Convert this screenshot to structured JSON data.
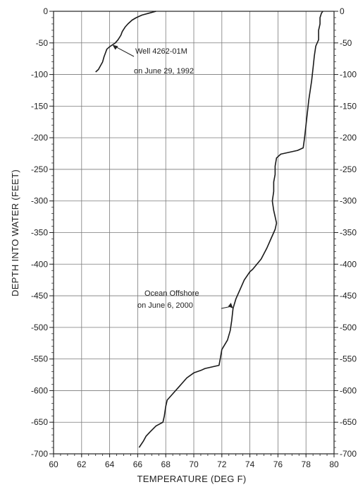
{
  "chart_data": {
    "type": "line",
    "title": "",
    "xlabel": "TEMPERATURE (DEG F)",
    "ylabel": "DEPTH INTO WATER (FEET)",
    "xlim": [
      60,
      80
    ],
    "ylim": [
      -700,
      0
    ],
    "x_ticks": [
      60,
      62,
      64,
      66,
      68,
      70,
      72,
      74,
      76,
      78,
      80
    ],
    "y_ticks": [
      0,
      -50,
      -100,
      -150,
      -200,
      -250,
      -300,
      -350,
      -400,
      -450,
      -500,
      -550,
      -600,
      -650,
      -700
    ],
    "grid": true,
    "legend": "none",
    "series": [
      {
        "points": [
          [
            67.3,
            0
          ],
          [
            66.8,
            -3
          ],
          [
            66.3,
            -6
          ],
          [
            65.9,
            -10
          ],
          [
            65.6,
            -14
          ],
          [
            65.3,
            -20
          ],
          [
            65.1,
            -25
          ],
          [
            64.9,
            -32
          ],
          [
            64.8,
            -38
          ],
          [
            64.6,
            -45
          ],
          [
            64.4,
            -50
          ],
          [
            64.2,
            -53
          ],
          [
            64.0,
            -56
          ],
          [
            63.8,
            -60
          ],
          [
            63.7,
            -66
          ],
          [
            63.6,
            -72
          ],
          [
            63.5,
            -80
          ],
          [
            63.3,
            -88
          ],
          [
            63.2,
            -92
          ],
          [
            63.0,
            -96
          ]
        ]
      },
      {
        "points": [
          [
            79.2,
            0
          ],
          [
            79.1,
            -3
          ],
          [
            79.0,
            -10
          ],
          [
            79.0,
            -20
          ],
          [
            78.9,
            -30
          ],
          [
            78.9,
            -45
          ],
          [
            78.7,
            -55
          ],
          [
            78.6,
            -70
          ],
          [
            78.5,
            -90
          ],
          [
            78.4,
            -110
          ],
          [
            78.3,
            -125
          ],
          [
            78.2,
            -140
          ],
          [
            78.1,
            -160
          ],
          [
            78.0,
            -180
          ],
          [
            77.9,
            -200
          ],
          [
            77.8,
            -216
          ],
          [
            77.4,
            -220
          ],
          [
            76.2,
            -226
          ],
          [
            75.9,
            -232
          ],
          [
            75.8,
            -245
          ],
          [
            75.8,
            -258
          ],
          [
            75.7,
            -270
          ],
          [
            75.7,
            -285
          ],
          [
            75.6,
            -300
          ],
          [
            75.7,
            -315
          ],
          [
            75.8,
            -325
          ],
          [
            75.9,
            -335
          ],
          [
            75.8,
            -345
          ],
          [
            75.5,
            -360
          ],
          [
            75.2,
            -375
          ],
          [
            74.8,
            -392
          ],
          [
            74.2,
            -408
          ],
          [
            74.0,
            -412
          ],
          [
            73.6,
            -425
          ],
          [
            73.3,
            -440
          ],
          [
            73.0,
            -455
          ],
          [
            72.8,
            -470
          ],
          [
            72.7,
            -490
          ],
          [
            72.6,
            -505
          ],
          [
            72.4,
            -520
          ],
          [
            72.0,
            -535
          ],
          [
            71.9,
            -548
          ],
          [
            71.8,
            -560
          ],
          [
            70.8,
            -565
          ],
          [
            70.5,
            -568
          ],
          [
            70.0,
            -572
          ],
          [
            69.5,
            -580
          ],
          [
            69.1,
            -590
          ],
          [
            68.5,
            -605
          ],
          [
            68.1,
            -615
          ],
          [
            68.0,
            -625
          ],
          [
            67.9,
            -640
          ],
          [
            67.8,
            -650
          ],
          [
            67.3,
            -656
          ],
          [
            66.9,
            -665
          ],
          [
            66.6,
            -672
          ],
          [
            66.4,
            -680
          ],
          [
            66.1,
            -690
          ]
        ]
      }
    ],
    "annotations": [
      {
        "lines": [
          "Well 4262-01M",
          "on June 29, 1992"
        ],
        "target": [
          64.2,
          -53
        ]
      },
      {
        "lines": [
          "Ocean Offshore",
          "on June 6, 2000"
        ],
        "target": [
          72.8,
          -470
        ]
      }
    ]
  }
}
